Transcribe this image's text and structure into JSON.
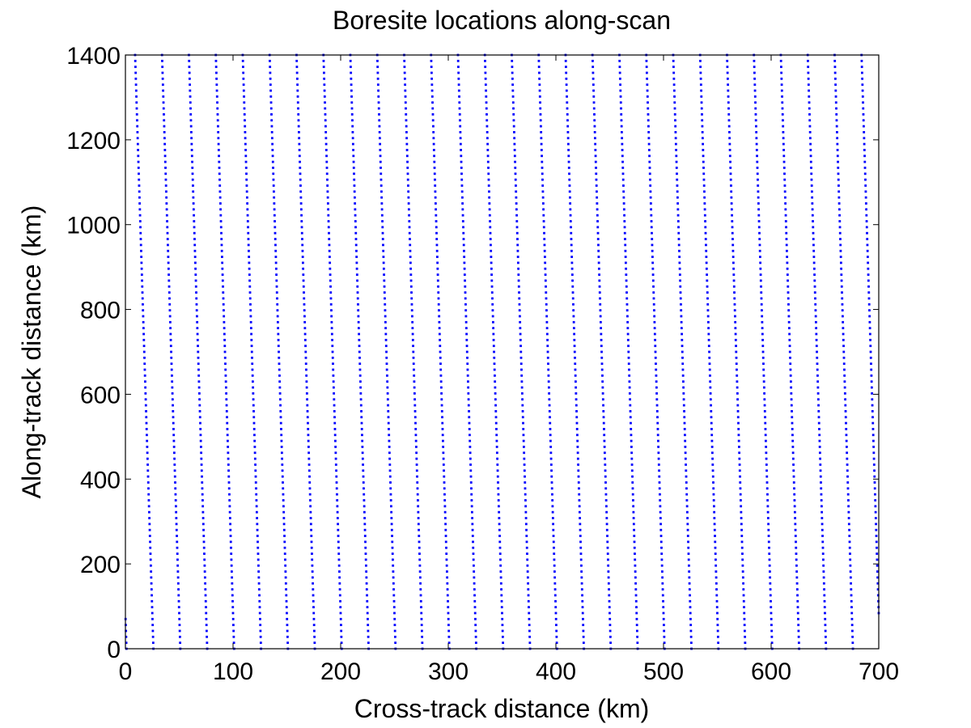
{
  "chart_data": {
    "type": "scatter",
    "title": "Boresite locations along-scan",
    "xlabel": "Cross-track distance (km)",
    "ylabel": "Along-track distance (km)",
    "xlim": [
      0,
      700
    ],
    "ylim": [
      0,
      1400
    ],
    "xticks": [
      0,
      100,
      200,
      300,
      400,
      500,
      600,
      700
    ],
    "yticks": [
      0,
      200,
      400,
      600,
      800,
      1000,
      1200,
      1400
    ],
    "grid": false,
    "marker_color": "#0000ff",
    "series": [
      {
        "points_description": "Diagonal scan lines: each line starts near y=1400 and descends to y=0 while x increases by about 17 km; line starts at y=1400 are spaced roughly 25 km apart in x across 0–700 km, with wrapped partial lines at the left edge (x=0 at y≈1130, 720, 295) and right edge (x=700 at y≈1120, 690, 265).",
        "line_top_x_at_y1400": [
          9,
          34,
          59,
          84,
          109,
          134,
          159,
          184,
          209,
          234,
          259,
          284,
          309,
          334,
          359,
          384,
          409,
          434,
          459,
          484,
          509,
          534,
          559,
          584,
          609,
          634,
          659,
          684
        ],
        "x_shift_over_full_height": 17
      }
    ]
  }
}
